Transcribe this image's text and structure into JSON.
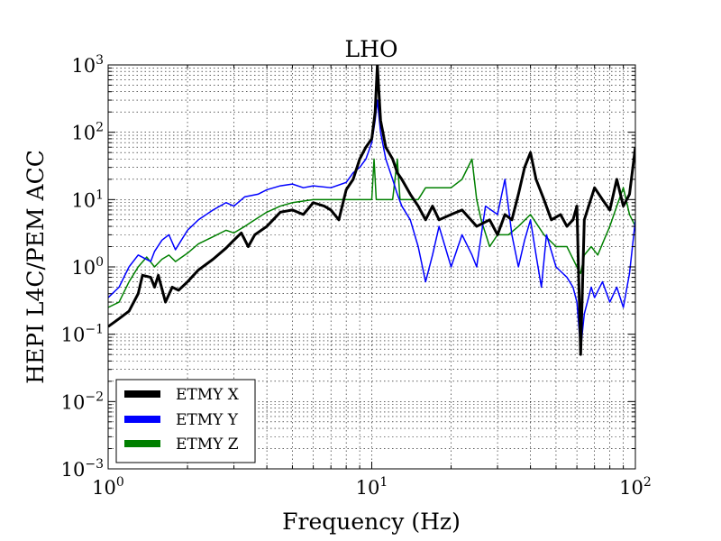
{
  "chart_data": {
    "type": "line",
    "title": "LHO",
    "xlabel": "Frequency (Hz)",
    "ylabel": "HEPI L4C/PEM ACC",
    "x_scale": "log",
    "y_scale": "log",
    "xlim": [
      1,
      100
    ],
    "ylim": [
      0.001,
      1000
    ],
    "x_ticks": [
      {
        "base": "10",
        "exp": "0"
      },
      {
        "base": "10",
        "exp": "1"
      },
      {
        "base": "10",
        "exp": "2"
      }
    ],
    "y_ticks": [
      {
        "base": "10",
        "exp": "−3"
      },
      {
        "base": "10",
        "exp": "−2"
      },
      {
        "base": "10",
        "exp": "−1"
      },
      {
        "base": "10",
        "exp": "0"
      },
      {
        "base": "10",
        "exp": "1"
      },
      {
        "base": "10",
        "exp": "2"
      },
      {
        "base": "10",
        "exp": "3"
      }
    ],
    "grid": true,
    "legend_position": "lower-left",
    "series": [
      {
        "name": "ETMY X",
        "color": "#000000",
        "stroke_width": 3,
        "points": [
          [
            1.0,
            0.13
          ],
          [
            1.1,
            0.17
          ],
          [
            1.2,
            0.22
          ],
          [
            1.3,
            0.4
          ],
          [
            1.35,
            0.75
          ],
          [
            1.45,
            0.7
          ],
          [
            1.5,
            0.5
          ],
          [
            1.55,
            0.75
          ],
          [
            1.65,
            0.3
          ],
          [
            1.75,
            0.5
          ],
          [
            1.85,
            0.45
          ],
          [
            2.0,
            0.6
          ],
          [
            2.2,
            0.9
          ],
          [
            2.5,
            1.3
          ],
          [
            2.8,
            1.9
          ],
          [
            3.0,
            2.5
          ],
          [
            3.2,
            3.2
          ],
          [
            3.4,
            2.0
          ],
          [
            3.6,
            3.0
          ],
          [
            4.0,
            4.0
          ],
          [
            4.5,
            6.5
          ],
          [
            5.0,
            7.0
          ],
          [
            5.5,
            6.0
          ],
          [
            6.0,
            9.0
          ],
          [
            6.6,
            8.0
          ],
          [
            7.0,
            7.0
          ],
          [
            7.5,
            5.0
          ],
          [
            8.0,
            14.0
          ],
          [
            8.5,
            20.0
          ],
          [
            9.0,
            40.0
          ],
          [
            9.5,
            60.0
          ],
          [
            10.0,
            80.0
          ],
          [
            10.3,
            200.0
          ],
          [
            10.5,
            1000.0
          ],
          [
            10.8,
            150.0
          ],
          [
            11.3,
            60.0
          ],
          [
            12.0,
            40.0
          ],
          [
            12.5,
            25.0
          ],
          [
            13.0,
            20.0
          ],
          [
            14.0,
            12.0
          ],
          [
            15.0,
            8.0
          ],
          [
            16.0,
            5.0
          ],
          [
            17.0,
            8.0
          ],
          [
            18.0,
            5.0
          ],
          [
            20.0,
            6.0
          ],
          [
            22.0,
            7.0
          ],
          [
            25.0,
            4.0
          ],
          [
            28.0,
            5.0
          ],
          [
            30.0,
            3.0
          ],
          [
            32.0,
            6.0
          ],
          [
            34.0,
            5.0
          ],
          [
            36.0,
            12.0
          ],
          [
            38.0,
            30.0
          ],
          [
            40.0,
            50.0
          ],
          [
            42.0,
            20.0
          ],
          [
            45.0,
            10.0
          ],
          [
            48.0,
            5.0
          ],
          [
            52.0,
            6.0
          ],
          [
            55.0,
            4.0
          ],
          [
            58.0,
            5.0
          ],
          [
            60.0,
            8.0
          ],
          [
            62.0,
            0.05
          ],
          [
            64.0,
            5.0
          ],
          [
            70.0,
            15.0
          ],
          [
            75.0,
            10.0
          ],
          [
            80.0,
            7.0
          ],
          [
            85.0,
            20.0
          ],
          [
            90.0,
            8.0
          ],
          [
            95.0,
            12.0
          ],
          [
            100.0,
            60.0
          ]
        ]
      },
      {
        "name": "ETMY Y",
        "color": "#0000ff",
        "stroke_width": 1.5,
        "points": [
          [
            1.0,
            0.35
          ],
          [
            1.1,
            0.5
          ],
          [
            1.2,
            1.0
          ],
          [
            1.3,
            1.5
          ],
          [
            1.45,
            1.2
          ],
          [
            1.5,
            1.7
          ],
          [
            1.6,
            2.5
          ],
          [
            1.7,
            3.0
          ],
          [
            1.8,
            1.8
          ],
          [
            2.0,
            3.5
          ],
          [
            2.2,
            5.0
          ],
          [
            2.5,
            7.0
          ],
          [
            2.8,
            9.0
          ],
          [
            3.0,
            8.0
          ],
          [
            3.3,
            11.0
          ],
          [
            3.7,
            12.0
          ],
          [
            4.0,
            14.0
          ],
          [
            4.5,
            16.0
          ],
          [
            5.0,
            17.0
          ],
          [
            5.5,
            15.0
          ],
          [
            6.0,
            16.0
          ],
          [
            7.0,
            15.0
          ],
          [
            8.0,
            18.0
          ],
          [
            8.5,
            25.0
          ],
          [
            9.0,
            30.0
          ],
          [
            9.5,
            40.0
          ],
          [
            10.0,
            70.0
          ],
          [
            10.3,
            150.0
          ],
          [
            10.5,
            300.0
          ],
          [
            10.8,
            100.0
          ],
          [
            11.3,
            40.0
          ],
          [
            12.0,
            20.0
          ],
          [
            12.5,
            12.0
          ],
          [
            13.0,
            8.0
          ],
          [
            14.0,
            5.0
          ],
          [
            15.0,
            2.0
          ],
          [
            16.0,
            0.6
          ],
          [
            17.0,
            1.5
          ],
          [
            18.0,
            4.0
          ],
          [
            20.0,
            1.0
          ],
          [
            22.0,
            3.0
          ],
          [
            24.0,
            1.5
          ],
          [
            25.0,
            1.0
          ],
          [
            27.0,
            8.0
          ],
          [
            30.0,
            6.0
          ],
          [
            32.0,
            20.0
          ],
          [
            34.0,
            3.0
          ],
          [
            36.0,
            1.0
          ],
          [
            38.0,
            2.5
          ],
          [
            40.0,
            5.0
          ],
          [
            42.0,
            1.5
          ],
          [
            44.0,
            0.5
          ],
          [
            46.0,
            3.0
          ],
          [
            50.0,
            1.0
          ],
          [
            55.0,
            0.7
          ],
          [
            58.0,
            0.5
          ],
          [
            60.0,
            0.3
          ],
          [
            62.0,
            0.06
          ],
          [
            64.0,
            0.2
          ],
          [
            68.0,
            0.5
          ],
          [
            70.0,
            0.35
          ],
          [
            75.0,
            0.6
          ],
          [
            80.0,
            0.3
          ],
          [
            85.0,
            0.5
          ],
          [
            90.0,
            0.25
          ],
          [
            95.0,
            0.8
          ],
          [
            100.0,
            5.0
          ]
        ]
      },
      {
        "name": "ETMY Z",
        "color": "#008000",
        "stroke_width": 1.5,
        "points": [
          [
            1.0,
            0.25
          ],
          [
            1.1,
            0.3
          ],
          [
            1.2,
            0.6
          ],
          [
            1.3,
            1.0
          ],
          [
            1.4,
            1.4
          ],
          [
            1.5,
            1.0
          ],
          [
            1.6,
            1.3
          ],
          [
            1.7,
            1.5
          ],
          [
            1.8,
            1.2
          ],
          [
            2.0,
            1.6
          ],
          [
            2.2,
            2.2
          ],
          [
            2.5,
            2.8
          ],
          [
            2.8,
            3.5
          ],
          [
            3.0,
            3.2
          ],
          [
            3.3,
            4.0
          ],
          [
            3.6,
            5.0
          ],
          [
            4.0,
            6.5
          ],
          [
            4.5,
            8.0
          ],
          [
            5.0,
            9.0
          ],
          [
            5.5,
            9.5
          ],
          [
            6.0,
            10.0
          ],
          [
            7.0,
            10.0
          ],
          [
            8.0,
            10.0
          ],
          [
            9.0,
            10.0
          ],
          [
            10.0,
            10.0
          ],
          [
            10.2,
            40.0
          ],
          [
            10.4,
            10.0
          ],
          [
            11.0,
            10.0
          ],
          [
            12.0,
            10.0
          ],
          [
            12.5,
            40.0
          ],
          [
            12.8,
            10.0
          ],
          [
            13.5,
            10.0
          ],
          [
            15.0,
            10.0
          ],
          [
            16.0,
            15.0
          ],
          [
            18.0,
            15.0
          ],
          [
            20.0,
            15.0
          ],
          [
            22.0,
            20.0
          ],
          [
            24.0,
            40.0
          ],
          [
            25.0,
            10.0
          ],
          [
            26.0,
            5.0
          ],
          [
            28.0,
            2.0
          ],
          [
            30.0,
            3.0
          ],
          [
            33.0,
            3.0
          ],
          [
            36.0,
            4.0
          ],
          [
            40.0,
            6.0
          ],
          [
            45.0,
            3.0
          ],
          [
            50.0,
            2.0
          ],
          [
            55.0,
            2.0
          ],
          [
            60.0,
            1.0
          ],
          [
            62.0,
            0.8
          ],
          [
            64.0,
            1.5
          ],
          [
            68.0,
            2.0
          ],
          [
            72.0,
            1.5
          ],
          [
            76.0,
            2.5
          ],
          [
            80.0,
            4.0
          ],
          [
            85.0,
            8.0
          ],
          [
            90.0,
            15.0
          ],
          [
            95.0,
            6.0
          ],
          [
            100.0,
            4.0
          ]
        ]
      }
    ]
  }
}
